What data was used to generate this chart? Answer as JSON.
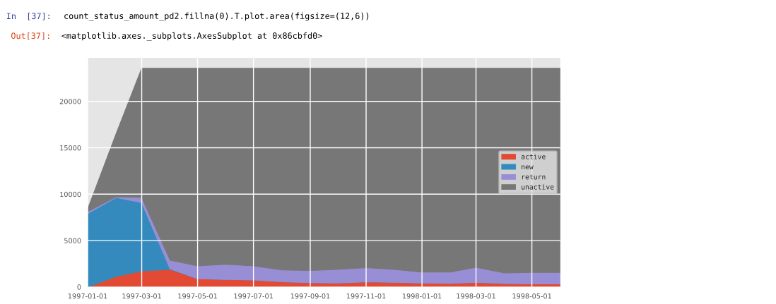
{
  "chart_data": {
    "type": "area",
    "stacked": true,
    "x": [
      "1997-01",
      "1997-02",
      "1997-03",
      "1997-04",
      "1997-05",
      "1997-06",
      "1997-07",
      "1997-08",
      "1997-09",
      "1997-10",
      "1997-11",
      "1997-12",
      "1998-01",
      "1998-02",
      "1998-03",
      "1998-04",
      "1998-05",
      "1998-06"
    ],
    "series": [
      {
        "name": "active",
        "color": "#e24a33",
        "values": [
          0,
          1140,
          1730,
          1900,
          890,
          810,
          760,
          560,
          460,
          430,
          560,
          510,
          430,
          400,
          510,
          380,
          330,
          330
        ]
      },
      {
        "name": "new",
        "color": "#348abd",
        "values": [
          7920,
          8500,
          7360,
          50,
          0,
          0,
          0,
          0,
          0,
          0,
          0,
          0,
          0,
          0,
          0,
          0,
          0,
          0
        ]
      },
      {
        "name": "return",
        "color": "#988ed5",
        "values": [
          200,
          80,
          550,
          940,
          1390,
          1630,
          1520,
          1270,
          1320,
          1470,
          1520,
          1390,
          1170,
          1200,
          1620,
          1140,
          1240,
          1240
        ]
      },
      {
        "name": "unactive",
        "color": "#777777",
        "values": [
          280,
          6780,
          13930,
          20680,
          21290,
          21130,
          21290,
          21740,
          21790,
          21670,
          21490,
          21670,
          21970,
          21970,
          21440,
          22050,
          22000,
          22000
        ]
      }
    ],
    "xlim": [
      "1997-01-01",
      "1998-06-01"
    ],
    "xticks": [
      "1997-01-01",
      "1997-03-01",
      "1997-05-01",
      "1997-07-01",
      "1997-09-01",
      "1997-11-01",
      "1998-01-01",
      "1998-03-01",
      "1998-05-01"
    ],
    "ylim": [
      0,
      24700
    ],
    "yticks": [
      0,
      5000,
      10000,
      15000,
      20000
    ],
    "grid": true,
    "legend": "right",
    "annotations": [
      "In  [37]:",
      "count_status_amount_pd2.fillna(0).T.plot.area(figsize=(12,6))",
      "Out[37]:",
      "<matplotlib.axes._subplots.AxesSubplot at 0x86cbfd0>"
    ]
  }
}
